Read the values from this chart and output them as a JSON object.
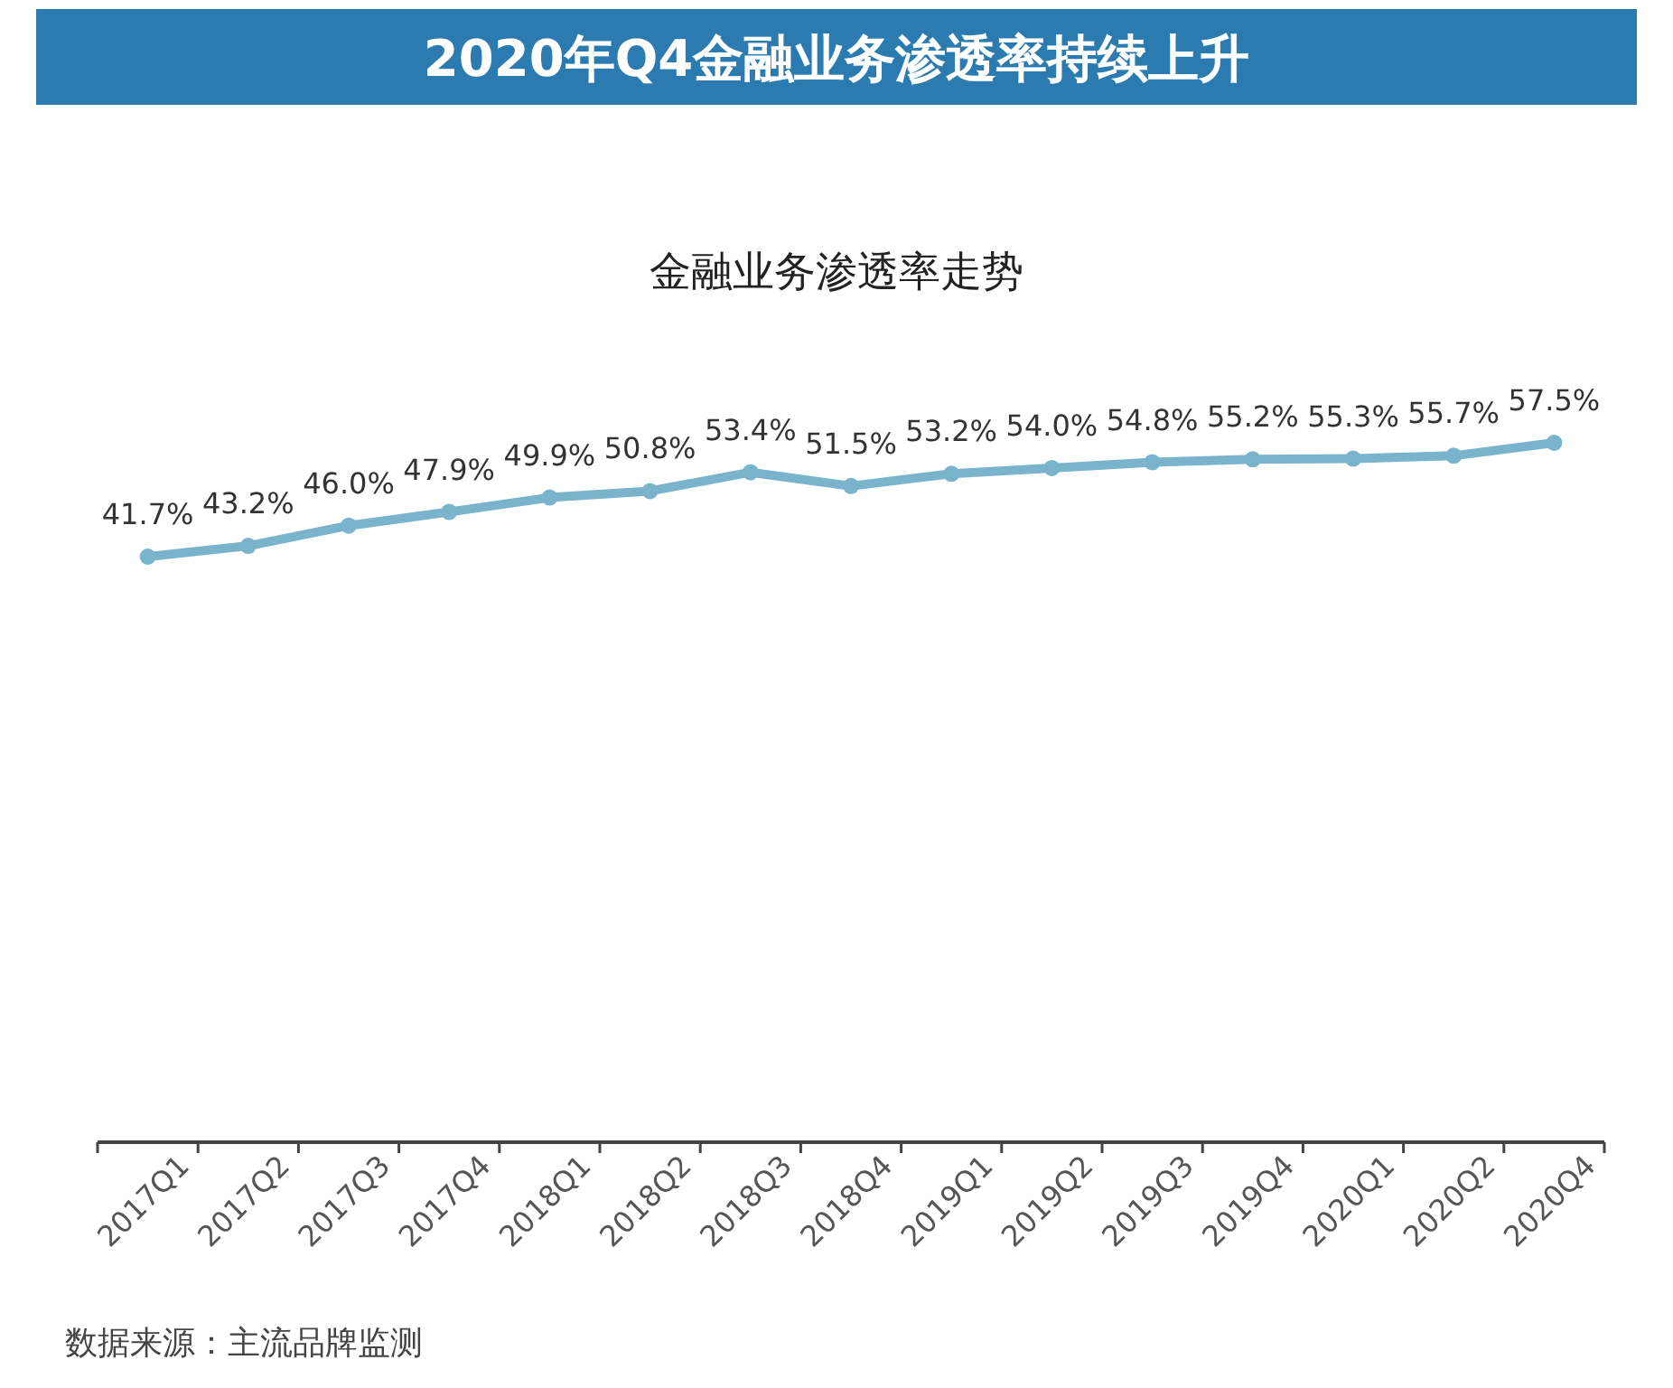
{
  "chart_data": {
    "type": "line",
    "title": "2020年Q4金融业务渗透率持续上升",
    "subtitle": "金融业务渗透率走势",
    "categories": [
      "2017Q1",
      "2017Q2",
      "2017Q3",
      "2017Q4",
      "2018Q1",
      "2018Q2",
      "2018Q3",
      "2018Q4",
      "2019Q1",
      "2019Q2",
      "2019Q3",
      "2019Q4",
      "2020Q1",
      "2020Q2",
      "2020Q4"
    ],
    "values": [
      41.7,
      43.2,
      46.0,
      47.9,
      49.9,
      50.8,
      53.4,
      51.5,
      53.2,
      54.0,
      54.8,
      55.2,
      55.3,
      55.7,
      57.5
    ],
    "value_labels": [
      "41.7%",
      "43.2%",
      "46.0%",
      "47.9%",
      "49.9%",
      "50.8%",
      "53.4%",
      "51.5%",
      "53.2%",
      "54.0%",
      "54.8%",
      "55.2%",
      "55.3%",
      "55.7%",
      "57.5%"
    ],
    "color": "#7ab3cc",
    "marker": "circle",
    "annotations": [
      "数据来源：主流品牌监测"
    ]
  }
}
